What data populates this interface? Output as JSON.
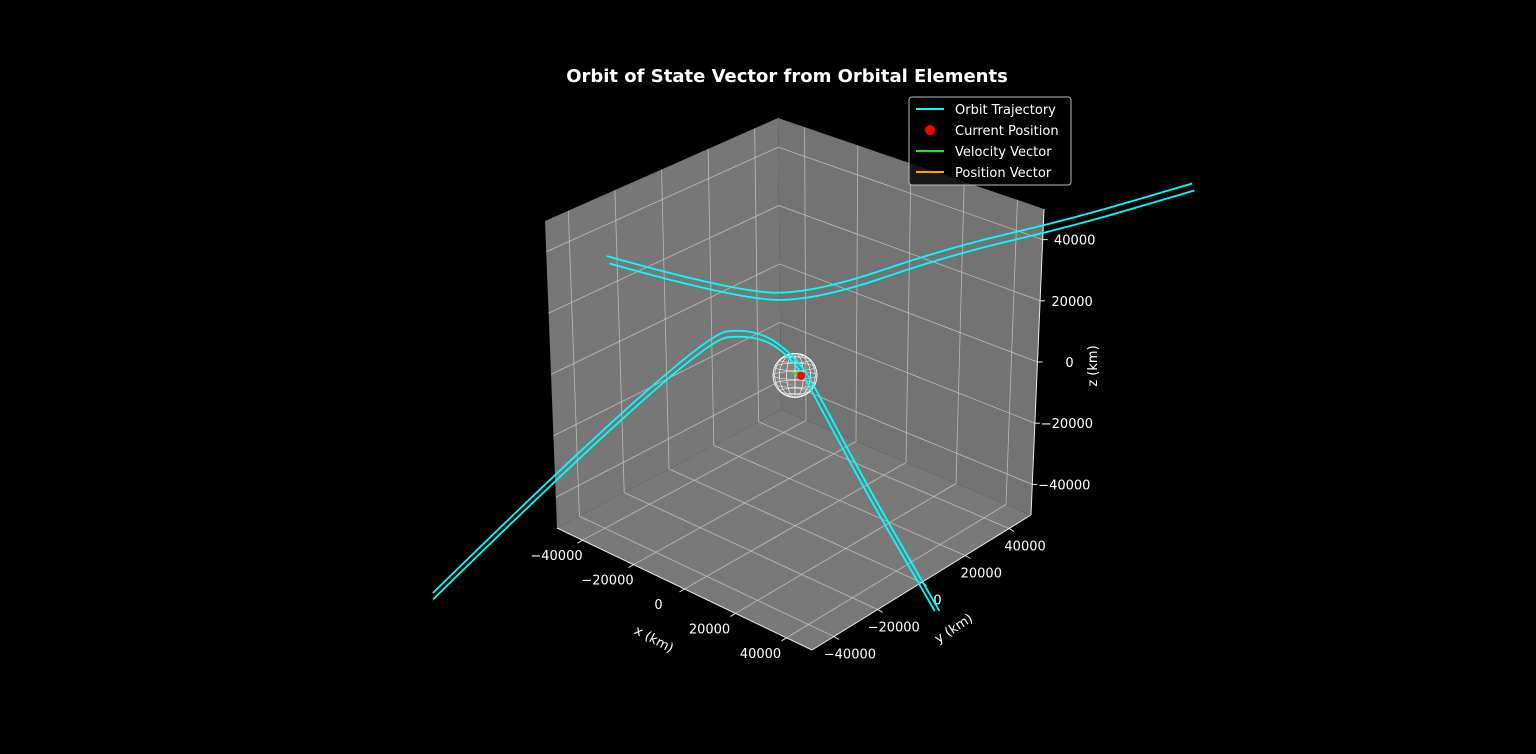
{
  "chart_data": {
    "type": "line",
    "projection": "3d",
    "title": "Orbit of State Vector from Orbital Elements",
    "xlabel": "x (km)",
    "ylabel": "y (km)",
    "zlabel": "z (km)",
    "xlim": [
      -50000,
      50000
    ],
    "ylim": [
      -50000,
      50000
    ],
    "zlim": [
      -50000,
      50000
    ],
    "x_ticks": [
      "−40000",
      "−20000",
      "0",
      "20000",
      "40000"
    ],
    "y_ticks": [
      "−40000",
      "−20000",
      "0",
      "20000",
      "40000"
    ],
    "z_ticks": [
      "−40000",
      "−20000",
      "0",
      "20000",
      "40000"
    ],
    "grid": true,
    "pane_color": "#808080",
    "background": "#000000",
    "legend": {
      "position": "top-right",
      "entries": [
        {
          "label": "Orbit Trajectory",
          "color": "#00ffff",
          "marker": "line"
        },
        {
          "label": "Current Position",
          "color": "#ff0000",
          "marker": "dot"
        },
        {
          "label": "Velocity Vector",
          "color": "#00ff00",
          "marker": "line"
        },
        {
          "label": "Position Vector",
          "color": "#ffa500",
          "marker": "line"
        }
      ]
    },
    "central_body": {
      "shape": "wireframe-sphere",
      "color": "#ffffff",
      "radius_km": 6371
    },
    "current_position": {
      "x": 5000,
      "y": -3000,
      "z": 3000
    },
    "series": [
      {
        "name": "Orbit Trajectory",
        "color": "#00ffff",
        "segments": [
          [
            [
              -55000,
              -100000,
              -56000
            ],
            [
              -20000,
              -20000,
              12000
            ],
            [
              -10000,
              -5000,
              12000
            ],
            [
              0,
              0,
              5000
            ],
            [
              5000,
              5000,
              -10000
            ],
            [
              15000,
              15000,
              -40000
            ],
            [
              30000,
              30000,
              -80000
            ]
          ],
          [
            [
              -55000,
              -100000,
              -54000
            ],
            [
              -20000,
              -20000,
              14000
            ],
            [
              -10000,
              -5000,
              14000
            ],
            [
              1000,
              1000,
              5000
            ],
            [
              6000,
              6000,
              -10000
            ],
            [
              16000,
              16000,
              -40000
            ],
            [
              31000,
              31000,
              -80000
            ]
          ],
          [
            [
              -8000,
              -70000,
              62000
            ],
            [
              -3000,
              -20000,
              32000
            ],
            [
              5000,
              5000,
              25000
            ],
            [
              20000,
              45000,
              28000
            ],
            [
              40000,
              75000,
              30000
            ],
            [
              60000,
              105000,
              33000
            ]
          ],
          [
            [
              -9000,
              -70000,
              64000
            ],
            [
              -4000,
              -20000,
              34000
            ],
            [
              4000,
              5000,
              27000
            ],
            [
              19000,
              45000,
              30000
            ],
            [
              39000,
              75000,
              32000
            ],
            [
              59000,
              105000,
              35000
            ]
          ]
        ]
      }
    ]
  }
}
